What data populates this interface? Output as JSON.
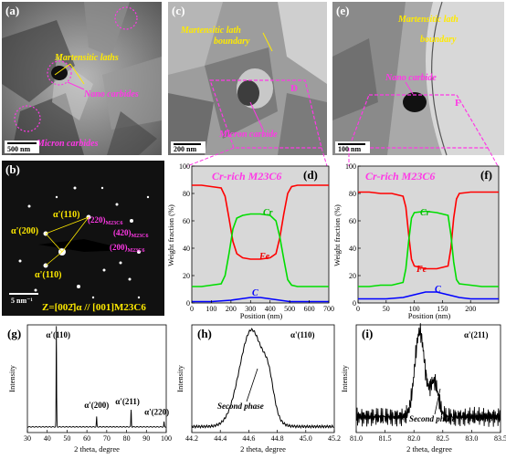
{
  "panels": {
    "a": {
      "label": "(a)",
      "annotations": [
        "Martensitic laths",
        "Nano carbides",
        "Micron carbides"
      ],
      "scale_bar": "500 nm"
    },
    "c": {
      "label": "(c)",
      "annotations": [
        "Martensitic lath",
        "boundary",
        "Micron carbide"
      ],
      "marker": "D",
      "scale_bar": "200 nm"
    },
    "e": {
      "label": "(e)",
      "annotations": [
        "Martensitic lath",
        "boundary",
        "Nano carbide"
      ],
      "marker": "F",
      "scale_bar": "100 nm"
    },
    "b": {
      "label": "(b)",
      "spots": [
        "α'(110)",
        "α'(200)",
        "α'(110)",
        "(220)",
        "(420)",
        "(200)"
      ],
      "phase_sub": "M23C6",
      "scale_bar": "5 nm⁻¹",
      "zone_axis": "Z=[002̄]α // [001]M23C6"
    },
    "d": {
      "label": "(d)",
      "title": "Cr-rich M23C6"
    },
    "f": {
      "label": "(f)",
      "title": "Cr-rich M23C6"
    },
    "g": {
      "label": "(g)"
    },
    "h": {
      "label": "(h)",
      "note": "Second phase"
    },
    "i": {
      "label": "(i)",
      "note": "Second phase"
    }
  },
  "chart_data": [
    {
      "id": "d",
      "type": "line",
      "title": "Cr-rich M23C6",
      "xlabel": "Position (nm)",
      "ylabel": "Weight fraction (%)",
      "xlim": [
        0,
        700
      ],
      "ylim": [
        0,
        100
      ],
      "xticks": [
        0,
        100,
        200,
        300,
        400,
        500,
        600,
        700
      ],
      "yticks": [
        0,
        20,
        40,
        60,
        80,
        100
      ],
      "series": [
        {
          "name": "Fe",
          "color": "#ff0000",
          "x": [
            0,
            50,
            100,
            150,
            170,
            190,
            210,
            230,
            260,
            300,
            350,
            400,
            430,
            450,
            470,
            490,
            510,
            540,
            600,
            650,
            700
          ],
          "y": [
            86,
            86,
            85,
            84,
            78,
            62,
            45,
            36,
            33,
            32,
            32,
            33,
            36,
            48,
            65,
            80,
            85,
            86,
            86,
            86,
            86
          ]
        },
        {
          "name": "Cr",
          "color": "#00dd00",
          "x": [
            0,
            50,
            100,
            150,
            170,
            190,
            210,
            230,
            260,
            300,
            350,
            400,
            430,
            450,
            470,
            490,
            510,
            540,
            600,
            650,
            700
          ],
          "y": [
            12,
            12,
            13,
            14,
            20,
            36,
            54,
            62,
            64,
            65,
            65,
            64,
            60,
            48,
            32,
            17,
            13,
            12,
            12,
            12,
            12
          ]
        },
        {
          "name": "C",
          "color": "#0000ff",
          "x": [
            0,
            100,
            200,
            250,
            300,
            350,
            400,
            450,
            500,
            600,
            700
          ],
          "y": [
            1,
            1,
            2,
            3,
            4,
            4,
            3,
            2,
            1,
            1,
            1
          ]
        }
      ]
    },
    {
      "id": "f",
      "type": "line",
      "title": "Cr-rich M23C6",
      "xlabel": "Position (nm)",
      "ylabel": "Weight fraction (%)",
      "xlim": [
        0,
        250
      ],
      "ylim": [
        0,
        100
      ],
      "xticks": [
        0,
        50,
        100,
        150,
        200
      ],
      "yticks": [
        0,
        20,
        40,
        60,
        80,
        100
      ],
      "series": [
        {
          "name": "Fe",
          "color": "#ff0000",
          "x": [
            0,
            20,
            40,
            60,
            80,
            85,
            90,
            95,
            100,
            120,
            140,
            160,
            165,
            170,
            175,
            180,
            200,
            220,
            250
          ],
          "y": [
            81,
            81,
            80,
            80,
            78,
            70,
            50,
            32,
            27,
            25,
            25,
            27,
            40,
            62,
            76,
            80,
            81,
            81,
            81
          ]
        },
        {
          "name": "Cr",
          "color": "#00dd00",
          "x": [
            0,
            20,
            40,
            60,
            80,
            85,
            90,
            95,
            100,
            120,
            140,
            160,
            165,
            170,
            175,
            180,
            200,
            220,
            250
          ],
          "y": [
            12,
            12,
            13,
            13,
            15,
            25,
            45,
            62,
            66,
            67,
            66,
            64,
            50,
            30,
            17,
            14,
            13,
            12,
            12
          ]
        },
        {
          "name": "C",
          "color": "#0000ff",
          "x": [
            0,
            50,
            80,
            100,
            120,
            140,
            160,
            180,
            200,
            250
          ],
          "y": [
            3,
            3,
            4,
            6,
            8,
            8,
            6,
            4,
            3,
            3
          ]
        }
      ]
    },
    {
      "id": "g",
      "type": "line",
      "xlabel": "2 theta, degree",
      "ylabel": "Intensity",
      "xlim": [
        30,
        100
      ],
      "xticks": [
        30,
        40,
        50,
        60,
        70,
        80,
        90,
        100
      ],
      "peaks": [
        {
          "label": "α'(110)",
          "x": 44.6,
          "rel": 1.0
        },
        {
          "label": "α'(200)",
          "x": 64.9,
          "rel": 0.1
        },
        {
          "label": "α'(211)",
          "x": 82.3,
          "rel": 0.17
        },
        {
          "label": "α'(220)",
          "x": 98.9,
          "rel": 0.05
        }
      ]
    },
    {
      "id": "h",
      "type": "line",
      "title": "α'(110)",
      "xlabel": "2 theta, degree",
      "ylabel": "Intensity",
      "xlim": [
        44.2,
        45.2
      ],
      "xticks": [
        44.2,
        44.4,
        44.6,
        44.8,
        45.0,
        45.2
      ]
    },
    {
      "id": "i",
      "type": "line",
      "title": "α'(211)",
      "xlabel": "2 theta, degree",
      "ylabel": "Intensity",
      "xlim": [
        81.0,
        83.5
      ],
      "xticks": [
        81.0,
        81.5,
        82.0,
        82.5,
        83.0,
        83.5
      ]
    }
  ]
}
